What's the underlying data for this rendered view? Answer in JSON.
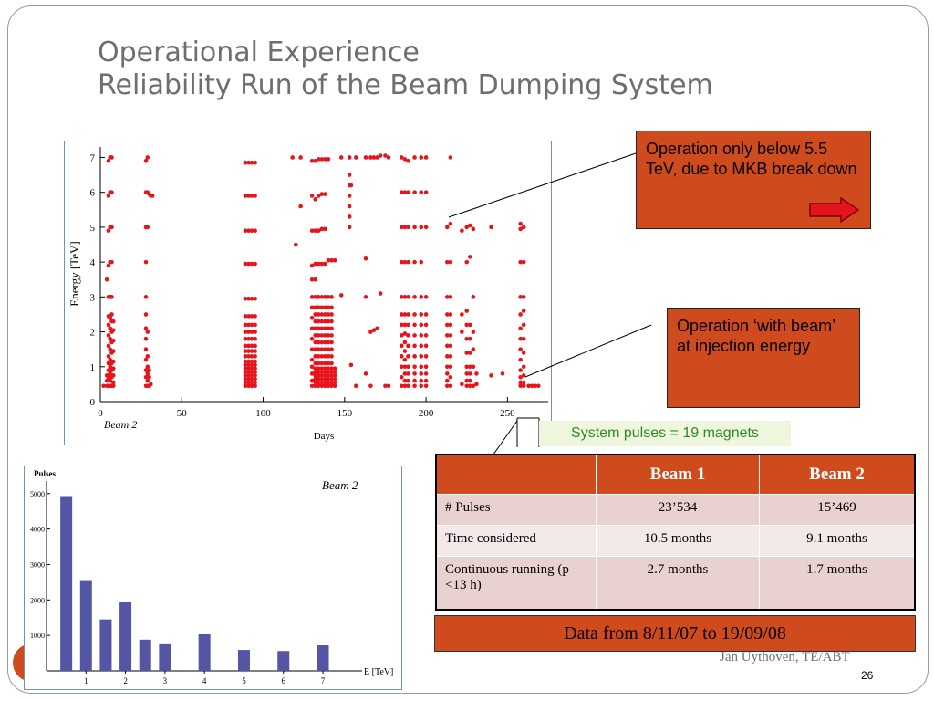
{
  "title": {
    "line1": "Operational Experience",
    "line2": "Reliability Run of the Beam Dumping System"
  },
  "callouts": {
    "mkb": "Operation only below 5.5 TeV, due to MKB break down",
    "injection": "Operation ‘with beam’ at injection energy"
  },
  "pulses_note": "System pulses = 19 magnets",
  "table": {
    "headers": [
      "",
      "Beam 1",
      "Beam 2"
    ],
    "rows": [
      [
        "# Pulses",
        "23’534",
        "15’469"
      ],
      [
        "Time considered",
        "10.5 months",
        "9.1 months"
      ],
      [
        "Continuous running (p <13 h)",
        "2.7 months",
        "1.7 months"
      ]
    ]
  },
  "data_range": "Data from 8/11/07 to 19/09/08",
  "author": "Jan Uythoven, TE/ABT",
  "page_number": "26",
  "colors": {
    "accent": "#cf4a1c",
    "scatter_points": "#e8141b",
    "bars": "#5555a5",
    "title": "#6e6e6e",
    "note_text": "#2e8b1f"
  },
  "icons": {
    "callout_arrow": "right-arrow-icon"
  },
  "chart_data": [
    {
      "type": "scatter",
      "annotation": "Beam 2",
      "xlabel": "Days",
      "ylabel": "Energy [TeV]",
      "xlim": [
        0,
        275
      ],
      "ylim": [
        0,
        7.3
      ],
      "xticks": [
        "0",
        "50",
        "100",
        "150",
        "200",
        "250"
      ],
      "yticks": [
        "0",
        "1",
        "2",
        "3",
        "4",
        "5",
        "6",
        "7"
      ],
      "grid": false,
      "columns": [
        {
          "x": 2,
          "levels": [
            0.45
          ]
        },
        {
          "x": 4,
          "levels": [
            0.45,
            0.6,
            0.75,
            3.5
          ]
        },
        {
          "x": 5,
          "levels": [
            0.45,
            0.7,
            0.9,
            1.1,
            1.3,
            1.6,
            1.9,
            2.2,
            2.45,
            3.0,
            3.9,
            4.9,
            5.9,
            6.9
          ]
        },
        {
          "x": 6,
          "levels": [
            0.45,
            0.6,
            0.8,
            1.0,
            1.2,
            1.5,
            1.8,
            2.1,
            2.4,
            3.0,
            4.0,
            5.0,
            6.0,
            7.0
          ]
        },
        {
          "x": 7,
          "levels": [
            0.45,
            0.7,
            0.9,
            1.1,
            1.4,
            1.7,
            2.0,
            2.3,
            2.5,
            3.0,
            4.0,
            5.0,
            6.0,
            7.0
          ]
        },
        {
          "x": 8,
          "levels": [
            0.45,
            0.55,
            0.75,
            0.95,
            1.15,
            1.45,
            1.75,
            2.05,
            2.3
          ]
        },
        {
          "x": 28,
          "levels": [
            0.45,
            0.7,
            0.9,
            1.2,
            1.5,
            1.8,
            2.1,
            2.5,
            3.0,
            4.0,
            5.0,
            6.0,
            6.9
          ]
        },
        {
          "x": 29,
          "levels": [
            0.45,
            0.6,
            0.8,
            1.0,
            1.3,
            2.0,
            5.0,
            6.0,
            7.0
          ]
        },
        {
          "x": 30,
          "levels": [
            0.45,
            0.7,
            0.9,
            5.95
          ]
        },
        {
          "x": 31,
          "levels": [
            0.5,
            5.9
          ]
        },
        {
          "x": 32,
          "levels": [
            5.9
          ]
        },
        {
          "x": 89,
          "levels": [
            0.45,
            0.55,
            0.65,
            0.75,
            0.85,
            0.95,
            1.05,
            1.15,
            1.3,
            1.45,
            1.6,
            1.8,
            2.0,
            2.2,
            2.45,
            2.95,
            3.95,
            4.9,
            5.9,
            6.85
          ]
        },
        {
          "x": 91,
          "levels": [
            0.45,
            0.55,
            0.65,
            0.75,
            0.85,
            0.95,
            1.05,
            1.15,
            1.3,
            1.45,
            1.6,
            1.8,
            2.0,
            2.2,
            2.45,
            2.95,
            3.95,
            4.9,
            5.9,
            6.85
          ]
        },
        {
          "x": 93,
          "levels": [
            0.45,
            0.55,
            0.65,
            0.75,
            0.85,
            0.95,
            1.05,
            1.15,
            1.3,
            1.45,
            1.6,
            1.8,
            2.0,
            2.2,
            2.45,
            2.95,
            3.95,
            4.9,
            5.9,
            6.85
          ]
        },
        {
          "x": 95,
          "levels": [
            0.45,
            0.55,
            0.65,
            0.75,
            0.85,
            0.95,
            1.05,
            1.15,
            1.3,
            1.45,
            1.6,
            1.8,
            2.0,
            2.2,
            2.45,
            2.95,
            3.95,
            4.9,
            5.9,
            6.85
          ]
        },
        {
          "x": 118,
          "levels": [
            7.0
          ]
        },
        {
          "x": 120,
          "levels": [
            4.5
          ]
        },
        {
          "x": 123,
          "levels": [
            5.6,
            7.0
          ]
        },
        {
          "x": 130,
          "levels": [
            0.45,
            0.6,
            0.8,
            1.0,
            1.2,
            1.5,
            1.8,
            2.1,
            2.4,
            2.7,
            3.0,
            3.5,
            3.9,
            4.9,
            5.9,
            6.9
          ]
        },
        {
          "x": 132,
          "levels": [
            0.45,
            0.55,
            0.65,
            0.75,
            0.85,
            0.95,
            1.1,
            1.3,
            1.5,
            1.7,
            1.9,
            2.1,
            2.3,
            2.5,
            2.7,
            3.0,
            3.5,
            3.95,
            4.9,
            5.8,
            6.9
          ]
        },
        {
          "x": 134,
          "levels": [
            0.45,
            0.55,
            0.65,
            0.75,
            0.85,
            0.95,
            1.1,
            1.3,
            1.5,
            1.7,
            1.9,
            2.1,
            2.3,
            2.5,
            2.7,
            3.0,
            3.95,
            4.9,
            5.9,
            6.95
          ]
        },
        {
          "x": 136,
          "levels": [
            0.45,
            0.55,
            0.65,
            0.75,
            0.85,
            0.95,
            1.1,
            1.3,
            1.5,
            1.7,
            1.9,
            2.1,
            2.3,
            2.5,
            2.7,
            3.0,
            3.95,
            4.95,
            5.95,
            6.95
          ]
        },
        {
          "x": 138,
          "levels": [
            0.45,
            0.55,
            0.65,
            0.75,
            0.85,
            0.95,
            1.1,
            1.3,
            1.5,
            1.7,
            1.9,
            2.1,
            2.3,
            2.5,
            2.7,
            3.0,
            3.95,
            4.95,
            5.95,
            6.95
          ]
        },
        {
          "x": 140,
          "levels": [
            0.45,
            0.55,
            0.65,
            0.75,
            0.85,
            0.95,
            1.1,
            1.3,
            1.5,
            1.7,
            1.9,
            2.1,
            2.3,
            2.5,
            2.7,
            3.0,
            4.05,
            6.95
          ]
        },
        {
          "x": 142,
          "levels": [
            0.45,
            0.55,
            0.65,
            0.75,
            0.85,
            0.95,
            1.1,
            1.3,
            1.5,
            1.7,
            1.9,
            2.1,
            2.3,
            2.5,
            2.7,
            3.0,
            4.05
          ]
        },
        {
          "x": 144,
          "levels": [
            0.45,
            0.55,
            0.65,
            0.75,
            0.85,
            0.95,
            4.05
          ]
        },
        {
          "x": 148,
          "levels": [
            3.05,
            7.0
          ]
        },
        {
          "x": 153,
          "levels": [
            5.0,
            5.3,
            5.6,
            5.9,
            6.2,
            6.5,
            7.0
          ]
        },
        {
          "x": 154,
          "levels": [
            1.05,
            6.2
          ]
        },
        {
          "x": 157,
          "levels": [
            0.45,
            7.0
          ]
        },
        {
          "x": 163,
          "levels": [
            0.8,
            3.0,
            4.1,
            7.0
          ]
        },
        {
          "x": 166,
          "levels": [
            0.45,
            2.0,
            7.0
          ]
        },
        {
          "x": 168,
          "levels": [
            2.05,
            7.0
          ]
        },
        {
          "x": 170,
          "levels": [
            2.1,
            7.0
          ]
        },
        {
          "x": 172,
          "levels": [
            3.1,
            7.05
          ]
        },
        {
          "x": 175,
          "levels": [
            0.45,
            7.05
          ]
        },
        {
          "x": 177,
          "levels": [
            0.45,
            7.0
          ]
        },
        {
          "x": 185,
          "levels": [
            0.45,
            0.7,
            1.0,
            1.3,
            1.6,
            1.9,
            2.2,
            2.5,
            3.0,
            4.0,
            5.0,
            6.0,
            7.0
          ]
        },
        {
          "x": 187,
          "levels": [
            0.45,
            0.6,
            0.8,
            1.0,
            1.2,
            1.45,
            1.7,
            1.95,
            2.2,
            2.5,
            3.0,
            4.0,
            5.0,
            6.0,
            6.95
          ]
        },
        {
          "x": 189,
          "levels": [
            0.45,
            0.6,
            0.8,
            1.0,
            1.3,
            1.6,
            1.9,
            2.2,
            2.5,
            3.0,
            4.0,
            5.0,
            6.0,
            6.9
          ]
        },
        {
          "x": 193,
          "levels": [
            0.45,
            0.6,
            0.8,
            1.0,
            1.3,
            1.6,
            1.9,
            2.2,
            2.5,
            3.0,
            4.0,
            5.0,
            6.0,
            7.0
          ]
        },
        {
          "x": 197,
          "levels": [
            0.45,
            0.6,
            0.8,
            1.0,
            1.3,
            1.6,
            1.9,
            2.2,
            2.5,
            3.0,
            4.0,
            5.0,
            6.0,
            7.0
          ]
        },
        {
          "x": 200,
          "levels": [
            0.45,
            0.6,
            0.8,
            1.0,
            1.3,
            1.6,
            1.9,
            2.2,
            2.5,
            3.0,
            5.0,
            6.0,
            7.0
          ]
        },
        {
          "x": 213,
          "levels": [
            0.45,
            0.6,
            0.8,
            1.0,
            1.3,
            1.6,
            1.9,
            2.2,
            2.5,
            3.0,
            4.0,
            5.0
          ]
        },
        {
          "x": 215,
          "levels": [
            0.45,
            0.7,
            1.0,
            1.3,
            1.6,
            1.9,
            2.2,
            2.5,
            3.0,
            4.0,
            5.1,
            7.0
          ]
        },
        {
          "x": 222,
          "levels": [
            0.5,
            2.0,
            2.5,
            4.9
          ]
        },
        {
          "x": 225,
          "levels": [
            0.45,
            0.6,
            0.8,
            1.0,
            1.4,
            1.8,
            2.2,
            2.6,
            4.0,
            5.0
          ]
        },
        {
          "x": 227,
          "levels": [
            0.45,
            0.6,
            0.8,
            1.0,
            1.4,
            1.8,
            2.2,
            4.15,
            5.05
          ]
        },
        {
          "x": 229,
          "levels": [
            0.45,
            1.0,
            1.5,
            2.0,
            3.0,
            4.95
          ]
        },
        {
          "x": 231,
          "levels": [
            0.5,
            0.8
          ]
        },
        {
          "x": 240,
          "levels": [
            0.75,
            5.0
          ]
        },
        {
          "x": 247,
          "levels": [
            0.8
          ]
        },
        {
          "x": 258,
          "levels": [
            0.45,
            0.55,
            0.7,
            0.9,
            1.2,
            1.5,
            1.8,
            2.1,
            2.5,
            3.0,
            4.0,
            4.95,
            5.1
          ]
        },
        {
          "x": 260,
          "levels": [
            0.45,
            0.55,
            0.75,
            1.0,
            1.4,
            1.8,
            2.2,
            2.6,
            3.0,
            4.0,
            5.0
          ]
        },
        {
          "x": 263,
          "levels": [
            0.45
          ]
        },
        {
          "x": 265,
          "levels": [
            0.45
          ]
        },
        {
          "x": 267,
          "levels": [
            0.45
          ]
        },
        {
          "x": 269,
          "levels": [
            0.45
          ]
        }
      ]
    },
    {
      "type": "bar",
      "annotation": "Beam 2",
      "ylabel": "Pulses",
      "xlabel": "E [TeV]",
      "ylim": [
        0,
        5200
      ],
      "xlim": [
        0,
        7.9
      ],
      "yticks": [
        "1000",
        "2000",
        "3000",
        "4000",
        "5000"
      ],
      "xticks": [
        "1",
        "2",
        "3",
        "4",
        "5",
        "6",
        "7"
      ],
      "bars": [
        {
          "x": 0.5,
          "value": 4930
        },
        {
          "x": 1.0,
          "value": 2560
        },
        {
          "x": 1.5,
          "value": 1450
        },
        {
          "x": 2.0,
          "value": 1930
        },
        {
          "x": 2.5,
          "value": 880
        },
        {
          "x": 3.0,
          "value": 750
        },
        {
          "x": 4.0,
          "value": 1030
        },
        {
          "x": 5.0,
          "value": 590
        },
        {
          "x": 6.0,
          "value": 560
        },
        {
          "x": 7.0,
          "value": 720
        }
      ]
    }
  ]
}
